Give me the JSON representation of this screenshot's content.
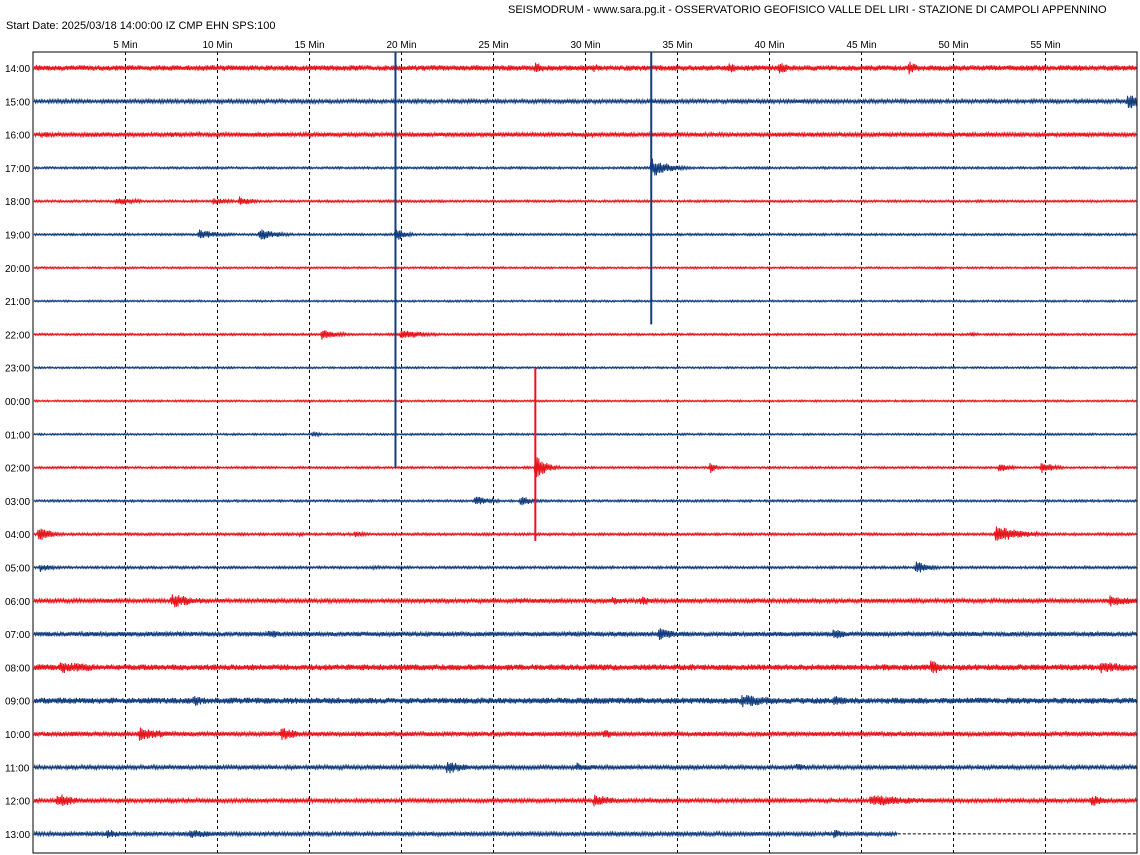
{
  "header": {
    "title": "SEISMODRUM - www.sara.pg.it - OSSERVATORIO GEOFISICO VALLE DEL LIRI - STAZIONE DI CAMPOLI APPENNINO",
    "start_info": "Start Date: 2025/03/18 14:00:00 IZ CMP EHN SPS:100"
  },
  "colors": {
    "red": "#e8141c",
    "blue": "#123e7e",
    "grid": "#000000"
  },
  "chart_data": {
    "type": "helicorder",
    "x_unit": "minutes",
    "xlim": [
      0,
      60
    ],
    "x_ticks": [
      5,
      10,
      15,
      20,
      25,
      30,
      35,
      40,
      45,
      50,
      55
    ],
    "x_tick_labels": [
      "5 Min",
      "10 Min",
      "15 Min",
      "20 Min",
      "25 Min",
      "30 Min",
      "35 Min",
      "40 Min",
      "45 Min",
      "50 Min",
      "55 Min"
    ],
    "grid": true,
    "rows": [
      {
        "label": "14:00",
        "color": "red",
        "noise": 0.18,
        "events": [
          {
            "t": 0.2,
            "a": 0.25,
            "d": 0.6
          },
          {
            "t": 27.3,
            "a": 0.4,
            "d": 0.8
          },
          {
            "t": 30.5,
            "a": 0.3,
            "d": 0.6
          },
          {
            "t": 37.8,
            "a": 0.35,
            "d": 1.0
          },
          {
            "t": 40.5,
            "a": 0.4,
            "d": 1.0
          },
          {
            "t": 47.6,
            "a": 0.5,
            "d": 0.6
          }
        ]
      },
      {
        "label": "15:00",
        "color": "blue",
        "noise": 0.12,
        "events": [
          {
            "t": 59.5,
            "a": 0.6,
            "d": 0.8
          }
        ]
      },
      {
        "label": "16:00",
        "color": "red",
        "noise": 0.14,
        "events": [
          {
            "t": 0.5,
            "a": 0.25,
            "d": 0.8
          },
          {
            "t": 7.5,
            "a": 0.2,
            "d": 1.5
          }
        ]
      },
      {
        "label": "17:00",
        "color": "blue",
        "noise": 0.07,
        "events": [
          {
            "t": 33.6,
            "a": 0.7,
            "d": 1.0
          }
        ]
      },
      {
        "label": "18:00",
        "color": "red",
        "noise": 0.07,
        "events": [
          {
            "t": 4.5,
            "a": 0.3,
            "d": 1.2
          },
          {
            "t": 9.8,
            "a": 0.25,
            "d": 1.0
          },
          {
            "t": 11.2,
            "a": 0.35,
            "d": 0.8
          }
        ]
      },
      {
        "label": "19:00",
        "color": "blue",
        "noise": 0.07,
        "events": [
          {
            "t": 9.0,
            "a": 0.35,
            "d": 1.2
          },
          {
            "t": 12.3,
            "a": 0.45,
            "d": 1.0
          },
          {
            "t": 19.7,
            "a": 0.5,
            "d": 0.6
          }
        ]
      },
      {
        "label": "20:00",
        "color": "red",
        "noise": 0.06,
        "events": []
      },
      {
        "label": "21:00",
        "color": "blue",
        "noise": 0.06,
        "events": []
      },
      {
        "label": "22:00",
        "color": "red",
        "noise": 0.07,
        "events": [
          {
            "t": 15.7,
            "a": 0.35,
            "d": 1.0
          },
          {
            "t": 20.0,
            "a": 0.4,
            "d": 1.2
          },
          {
            "t": 51.0,
            "a": 0.15,
            "d": 0.6
          }
        ]
      },
      {
        "label": "23:00",
        "color": "blue",
        "noise": 0.06,
        "events": []
      },
      {
        "label": "00:00",
        "color": "red",
        "noise": 0.06,
        "events": []
      },
      {
        "label": "01:00",
        "color": "blue",
        "noise": 0.06,
        "events": [
          {
            "t": 15.2,
            "a": 0.2,
            "d": 0.5
          }
        ]
      },
      {
        "label": "02:00",
        "color": "red",
        "noise": 0.07,
        "events": [
          {
            "t": 27.3,
            "a": 0.9,
            "d": 0.6
          },
          {
            "t": 36.8,
            "a": 0.5,
            "d": 0.3
          },
          {
            "t": 52.5,
            "a": 0.3,
            "d": 0.8
          },
          {
            "t": 54.8,
            "a": 0.4,
            "d": 0.8
          }
        ]
      },
      {
        "label": "03:00",
        "color": "blue",
        "noise": 0.07,
        "events": [
          {
            "t": 24.0,
            "a": 0.35,
            "d": 1.0
          },
          {
            "t": 26.5,
            "a": 0.35,
            "d": 0.8
          }
        ]
      },
      {
        "label": "04:00",
        "color": "red",
        "noise": 0.08,
        "events": [
          {
            "t": 0.3,
            "a": 0.5,
            "d": 0.8
          },
          {
            "t": 14.5,
            "a": 0.15,
            "d": 0.6
          },
          {
            "t": 17.5,
            "a": 0.2,
            "d": 0.8
          },
          {
            "t": 52.3,
            "a": 0.6,
            "d": 1.5
          }
        ]
      },
      {
        "label": "05:00",
        "color": "blue",
        "noise": 0.08,
        "events": [
          {
            "t": 0.4,
            "a": 0.3,
            "d": 0.8
          },
          {
            "t": 18.5,
            "a": 0.15,
            "d": 1.0
          },
          {
            "t": 48.0,
            "a": 0.45,
            "d": 0.8
          }
        ]
      },
      {
        "label": "06:00",
        "color": "red",
        "noise": 0.13,
        "events": [
          {
            "t": 7.5,
            "a": 0.5,
            "d": 1.6
          },
          {
            "t": 26.5,
            "a": 0.2,
            "d": 3.0
          },
          {
            "t": 31.5,
            "a": 0.3,
            "d": 1.0
          },
          {
            "t": 33.0,
            "a": 0.35,
            "d": 1.0
          },
          {
            "t": 58.5,
            "a": 0.4,
            "d": 1.5
          }
        ]
      },
      {
        "label": "07:00",
        "color": "blue",
        "noise": 0.15,
        "events": [
          {
            "t": 12.8,
            "a": 0.35,
            "d": 0.8
          },
          {
            "t": 34.0,
            "a": 0.45,
            "d": 1.0
          },
          {
            "t": 43.5,
            "a": 0.35,
            "d": 1.0
          }
        ]
      },
      {
        "label": "08:00",
        "color": "red",
        "noise": 0.2,
        "events": [
          {
            "t": 1.5,
            "a": 0.4,
            "d": 3.0
          },
          {
            "t": 48.8,
            "a": 0.5,
            "d": 1.0
          },
          {
            "t": 58.0,
            "a": 0.4,
            "d": 2.5
          }
        ]
      },
      {
        "label": "09:00",
        "color": "blue",
        "noise": 0.2,
        "events": [
          {
            "t": 8.7,
            "a": 0.4,
            "d": 1.0
          },
          {
            "t": 38.5,
            "a": 0.45,
            "d": 2.5
          },
          {
            "t": 43.5,
            "a": 0.35,
            "d": 1.5
          }
        ]
      },
      {
        "label": "10:00",
        "color": "red",
        "noise": 0.15,
        "events": [
          {
            "t": 5.8,
            "a": 0.5,
            "d": 1.5
          },
          {
            "t": 13.5,
            "a": 0.45,
            "d": 1.2
          },
          {
            "t": 31.0,
            "a": 0.35,
            "d": 1.0
          }
        ]
      },
      {
        "label": "11:00",
        "color": "blue",
        "noise": 0.13,
        "events": [
          {
            "t": 22.5,
            "a": 0.5,
            "d": 1.0
          },
          {
            "t": 29.5,
            "a": 0.35,
            "d": 1.2
          },
          {
            "t": 41.5,
            "a": 0.25,
            "d": 1.0
          }
        ]
      },
      {
        "label": "12:00",
        "color": "red",
        "noise": 0.13,
        "events": [
          {
            "t": 1.3,
            "a": 0.55,
            "d": 1.0
          },
          {
            "t": 30.5,
            "a": 0.45,
            "d": 1.2
          },
          {
            "t": 45.5,
            "a": 0.4,
            "d": 3.5
          },
          {
            "t": 57.5,
            "a": 0.45,
            "d": 0.8
          }
        ]
      },
      {
        "label": "13:00",
        "color": "blue",
        "noise": 0.13,
        "end": 47.0,
        "events": [
          {
            "t": 4.0,
            "a": 0.3,
            "d": 1.5
          },
          {
            "t": 8.5,
            "a": 0.35,
            "d": 1.5
          },
          {
            "t": 43.5,
            "a": 0.3,
            "d": 1.0
          }
        ]
      }
    ],
    "long_spikes": [
      {
        "t": 19.7,
        "row_from": 0,
        "row_to": 12,
        "color": "blue"
      },
      {
        "t": 33.6,
        "row_from": 0,
        "row_to": 7.7,
        "color": "blue"
      },
      {
        "t": 27.3,
        "row_from": 9.5,
        "row_to": 14.2,
        "color": "red"
      }
    ]
  }
}
